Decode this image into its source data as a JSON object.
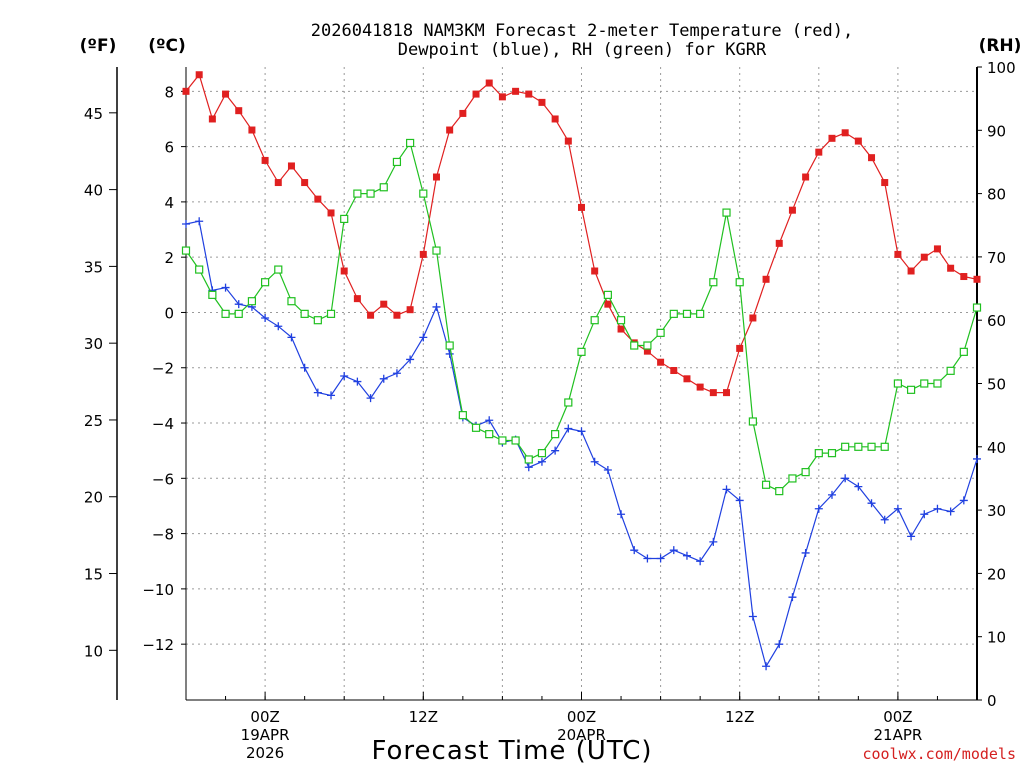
{
  "chart_data": {
    "type": "line",
    "title_line1": "2026041818 NAM3KM Forecast 2-meter Temperature (red),",
    "title_line2": "Dewpoint (blue), RH (green) for KGRR",
    "fahrenheit_label": "(ºF)",
    "celsius_label": "(ºC)",
    "rh_label": "(RH)",
    "xlabel": "Forecast Time (UTC)",
    "credit": "coolwx.com/models",
    "fahrenheit_ticks": [
      "45",
      "40",
      "35",
      "30",
      "25",
      "20",
      "15",
      "10"
    ],
    "fahrenheit_values": [
      45,
      40,
      35,
      30,
      25,
      20,
      15,
      10
    ],
    "celsius_ticks": [
      "8",
      "6",
      "4",
      "2",
      "0",
      "−2",
      "−4",
      "−6",
      "−8",
      "−10",
      "−12"
    ],
    "celsius_values": [
      8,
      6,
      4,
      2,
      0,
      -2,
      -4,
      -6,
      -8,
      -10,
      -12
    ],
    "rh_ticks": [
      "100",
      "90",
      "80",
      "70",
      "60",
      "50",
      "40",
      "30",
      "20",
      "10",
      "0"
    ],
    "rh_values": [
      100,
      90,
      80,
      70,
      60,
      50,
      40,
      30,
      20,
      10,
      0
    ],
    "celsius_range": [
      -14.02,
      8.88
    ],
    "rh_range": [
      0,
      100
    ],
    "hour_range": [
      0,
      60
    ],
    "x_ticks": [
      {
        "hour": 6,
        "label": "00Z",
        "sub1": "19APR",
        "sub2": "2026"
      },
      {
        "hour": 18,
        "label": "12Z",
        "sub1": "",
        "sub2": ""
      },
      {
        "hour": 30,
        "label": "00Z",
        "sub1": "20APR",
        "sub2": ""
      },
      {
        "hour": 42,
        "label": "12Z",
        "sub1": "",
        "sub2": ""
      },
      {
        "hour": 54,
        "label": "00Z",
        "sub1": "21APR",
        "sub2": ""
      }
    ],
    "series": [
      {
        "name": "Temperature",
        "color": "#e02020",
        "marker": "filled-square",
        "values": [
          8.0,
          8.6,
          7.0,
          7.9,
          7.3,
          6.6,
          5.5,
          4.7,
          5.3,
          4.7,
          4.1,
          3.6,
          1.5,
          0.5,
          -0.1,
          0.3,
          -0.1,
          0.1,
          2.1,
          4.9,
          6.6,
          7.2,
          7.9,
          8.3,
          7.8,
          8.0,
          7.9,
          7.6,
          7.0,
          6.2,
          3.8,
          1.5,
          0.3,
          -0.6,
          -1.1,
          -1.4,
          -1.8,
          -2.1,
          -2.4,
          -2.7,
          -2.9,
          -2.9,
          -1.3,
          -0.2,
          1.2,
          2.5,
          3.7,
          4.9,
          5.8,
          6.3,
          6.5,
          6.2,
          5.6,
          4.7,
          2.1,
          1.5,
          2.0,
          2.3,
          1.6,
          1.3,
          1.2
        ]
      },
      {
        "name": "Dewpoint",
        "color": "#2040e0",
        "marker": "plus",
        "values": [
          3.2,
          3.3,
          0.8,
          0.9,
          0.3,
          0.2,
          -0.2,
          -0.5,
          -0.9,
          -2.0,
          -2.9,
          -3.0,
          -2.3,
          -2.5,
          -3.1,
          -2.4,
          -2.2,
          -1.7,
          -0.9,
          0.2,
          -1.5,
          -3.8,
          -4.1,
          -3.9,
          -4.7,
          -4.6,
          -5.6,
          -5.4,
          -5.0,
          -4.2,
          -4.3,
          -5.4,
          -5.7,
          -7.3,
          -8.6,
          -8.9,
          -8.9,
          -8.6,
          -8.8,
          -9.0,
          -8.3,
          -6.4,
          -6.8,
          -11.0,
          -12.8,
          -12.0,
          -10.3,
          -8.7,
          -7.1,
          -6.6,
          -6.0,
          -6.3,
          -6.9,
          -7.5,
          -7.1,
          -8.1,
          -7.3,
          -7.1,
          -7.2,
          -6.8,
          -5.3
        ]
      },
      {
        "name": "RH",
        "color": "#20c020",
        "marker": "open-square",
        "values": [
          71,
          68,
          64,
          61,
          61,
          63,
          66,
          68,
          63,
          61,
          60,
          61,
          76,
          80,
          80,
          81,
          85,
          88,
          80,
          71,
          56,
          45,
          43,
          42,
          41,
          41,
          38,
          39,
          42,
          47,
          55,
          60,
          64,
          60,
          56,
          56,
          58,
          61,
          61,
          61,
          66,
          77,
          66,
          44,
          34,
          33,
          35,
          36,
          39,
          39,
          40,
          40,
          40,
          40,
          50,
          49,
          50,
          50,
          52,
          55,
          62
        ]
      }
    ]
  }
}
